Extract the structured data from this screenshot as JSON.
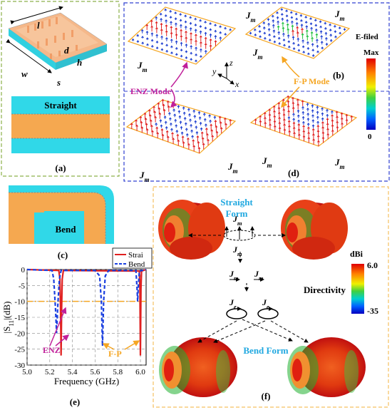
{
  "panel_a": {
    "label": "(a)",
    "dims": {
      "l": "l",
      "d": "d",
      "h": "h",
      "w": "w",
      "s": "s"
    },
    "straight_label": "Straight"
  },
  "panel_b": {
    "label": "(b)",
    "efield_label": "E-filed",
    "legend_max": "Max",
    "legend_min": "0",
    "enz_mode": "ENZ Mode",
    "fp_mode": "F-P Mode",
    "jm_sym": "J",
    "jm_sub": "m",
    "axes": {
      "x": "x",
      "y": "y",
      "z": "z"
    },
    "colors": {
      "red": "#e02020",
      "blue": "#2040d0",
      "orange": "#f5a623",
      "magenta": "#c0209a"
    }
  },
  "panel_c": {
    "label": "(c)",
    "bend_label": "Bend"
  },
  "panel_d": {
    "label": "(d)"
  },
  "panel_e": {
    "label": "(e)"
  },
  "panel_f": {
    "label": "(f)",
    "straight_form": "Straight\nForm",
    "bend_form": "Bend Form",
    "directivity": "Directivity",
    "unit": "dBi",
    "cb_max": "6.0",
    "cb_min": "-35",
    "je_sym": "J",
    "je_sub": "e"
  },
  "chart_data": {
    "type": "line",
    "xlabel": "Frequency (GHz)",
    "ylabel": "|S11|(dB)",
    "ylabel_main": "|S",
    "ylabel_sub": "11",
    "ylabel_tail": "|(dB)",
    "xlim": [
      5.0,
      6.05
    ],
    "ylim": [
      -30,
      0
    ],
    "x_ticks": [
      "5.0",
      "5.2",
      "5.4",
      "5.6",
      "5.8",
      "6.0"
    ],
    "x_tick_values": [
      5.0,
      5.2,
      5.4,
      5.6,
      5.8,
      6.0
    ],
    "y_ticks": [
      "0",
      "-5",
      "-10",
      "-15",
      "-20",
      "-25",
      "-30"
    ],
    "y_tick_values": [
      0,
      -5,
      -10,
      -15,
      -20,
      -25,
      -30
    ],
    "grid": true,
    "legend": "top-right",
    "annotations": [
      "ENZ",
      "F-P"
    ],
    "series": [
      {
        "name": "Strai",
        "color": "#e02020",
        "style": "solid",
        "x": [
          5.0,
          5.28,
          5.29,
          5.295,
          5.3,
          5.305,
          5.31,
          5.32,
          5.99,
          5.995,
          6.0,
          6.005,
          6.01,
          6.05
        ],
        "y": [
          0,
          -0.3,
          -3,
          -12,
          -27,
          -12,
          -3,
          -0.3,
          -0.5,
          -6,
          -27,
          -6,
          -0.5,
          0
        ]
      },
      {
        "name": "Bend",
        "color": "#1a3fe0",
        "style": "dashed",
        "x": [
          5.0,
          5.22,
          5.235,
          5.25,
          5.26,
          5.27,
          5.285,
          5.3,
          5.6,
          5.64,
          5.655,
          5.665,
          5.675,
          5.69,
          5.72,
          5.96,
          5.97,
          5.975,
          5.98,
          5.99,
          6.05
        ],
        "y": [
          0,
          -0.3,
          -3,
          -12,
          -20,
          -12,
          -3,
          -0.3,
          -0.3,
          -2,
          -10,
          -24,
          -10,
          -2,
          -0.3,
          -0.3,
          -6,
          -10,
          -6,
          -0.5,
          0
        ]
      }
    ]
  }
}
